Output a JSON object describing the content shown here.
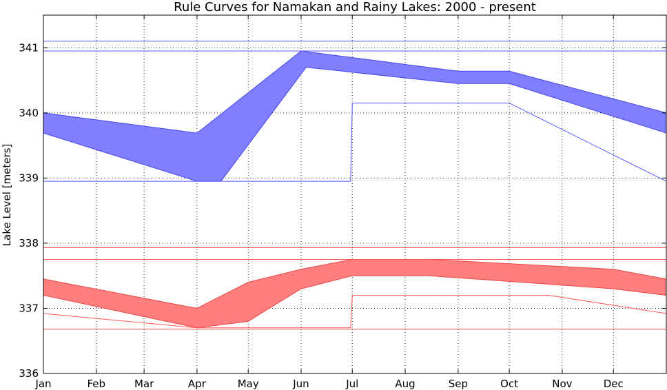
{
  "chart_data": {
    "type": "area",
    "title": "Rule Curves for Namakan and Rainy Lakes: 2000 - present",
    "xlabel": "",
    "ylabel": "Lake Level [meters]",
    "xlim": [
      1,
      366
    ],
    "ylim": [
      336,
      341.5
    ],
    "grid": true,
    "x_ticks": [
      {
        "label": "Jan",
        "day": 1
      },
      {
        "label": "Feb",
        "day": 32
      },
      {
        "label": "Mar",
        "day": 60
      },
      {
        "label": "Apr",
        "day": 91
      },
      {
        "label": "May",
        "day": 121
      },
      {
        "label": "Jun",
        "day": 152
      },
      {
        "label": "Jul",
        "day": 182
      },
      {
        "label": "Aug",
        "day": 213
      },
      {
        "label": "Sep",
        "day": 244
      },
      {
        "label": "Oct",
        "day": 274
      },
      {
        "label": "Nov",
        "day": 305
      },
      {
        "label": "Dec",
        "day": 335
      }
    ],
    "y_ticks": [
      336,
      337,
      338,
      339,
      340,
      341
    ],
    "bands": [
      {
        "lake": "Namakan",
        "color": "#7f7fff",
        "edge_color": "#4444ee",
        "upper": [
          [
            1,
            340.0
          ],
          [
            91,
            339.69
          ],
          [
            152,
            340.95
          ],
          [
            244,
            340.64
          ],
          [
            274,
            340.64
          ],
          [
            366,
            340.0
          ]
        ],
        "lower": [
          [
            1,
            339.69
          ],
          [
            91,
            338.95
          ],
          [
            105,
            338.95
          ],
          [
            155,
            340.7
          ],
          [
            244,
            340.45
          ],
          [
            274,
            340.45
          ],
          [
            366,
            339.69
          ]
        ]
      },
      {
        "lake": "Rainy",
        "color": "#ff7f7f",
        "edge_color": "#ee4444",
        "upper": [
          [
            1,
            337.45
          ],
          [
            91,
            337.0
          ],
          [
            121,
            337.4
          ],
          [
            152,
            337.6
          ],
          [
            182,
            337.75
          ],
          [
            227,
            337.75
          ],
          [
            335,
            337.6
          ],
          [
            366,
            337.45
          ]
        ],
        "lower": [
          [
            1,
            337.2
          ],
          [
            91,
            336.7
          ],
          [
            121,
            336.8
          ],
          [
            152,
            337.3
          ],
          [
            182,
            337.5
          ],
          [
            227,
            337.5
          ],
          [
            335,
            337.3
          ],
          [
            366,
            337.2
          ]
        ]
      }
    ],
    "lines": [
      {
        "lake": "Namakan",
        "color": "#5555ff",
        "points": [
          [
            1,
            341.1
          ],
          [
            366,
            341.1
          ]
        ]
      },
      {
        "lake": "Namakan",
        "color": "#5555ff",
        "points": [
          [
            1,
            340.95
          ],
          [
            366,
            340.95
          ]
        ]
      },
      {
        "lake": "Namakan",
        "color": "#5555ff",
        "points": [
          [
            1,
            338.95
          ],
          [
            181,
            338.95
          ],
          [
            182,
            340.15
          ],
          [
            274,
            340.15
          ],
          [
            366,
            338.95
          ]
        ]
      },
      {
        "lake": "Rainy",
        "color": "#ff5555",
        "points": [
          [
            1,
            337.93
          ],
          [
            366,
            337.93
          ]
        ]
      },
      {
        "lake": "Rainy",
        "color": "#ff5555",
        "points": [
          [
            1,
            337.75
          ],
          [
            366,
            337.75
          ]
        ]
      },
      {
        "lake": "Rainy",
        "color": "#ff5555",
        "points": [
          [
            1,
            336.92
          ],
          [
            91,
            336.7
          ],
          [
            181,
            336.7
          ],
          [
            182,
            337.2
          ],
          [
            297,
            337.2
          ],
          [
            366,
            336.92
          ]
        ]
      },
      {
        "lake": "Rainy",
        "color": "#ff5555",
        "points": [
          [
            1,
            336.68
          ],
          [
            366,
            336.68
          ]
        ]
      }
    ]
  }
}
